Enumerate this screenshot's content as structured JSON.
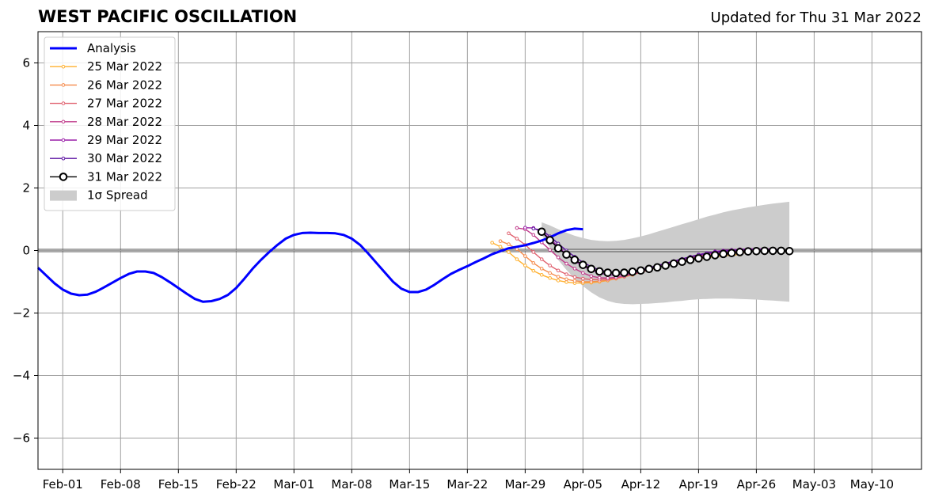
{
  "chart_data": {
    "type": "line",
    "title": "WEST PACIFIC OSCILLATION",
    "subtitle": "Updated for Thu 31 Mar 2022",
    "xlabel": "",
    "ylabel": "",
    "x_range": [
      "2022-01-29",
      "2022-05-16"
    ],
    "ylim": [
      -7,
      7
    ],
    "y_ticks": [
      -6,
      -4,
      -2,
      0,
      2,
      4,
      6
    ],
    "y_tick_labels": [
      "−6",
      "−4",
      "−2",
      "0",
      "2",
      "4",
      "6"
    ],
    "x_ticks": [
      "2022-02-01",
      "2022-02-08",
      "2022-02-15",
      "2022-02-22",
      "2022-03-01",
      "2022-03-08",
      "2022-03-15",
      "2022-03-22",
      "2022-03-29",
      "2022-04-05",
      "2022-04-12",
      "2022-04-19",
      "2022-04-26",
      "2022-05-03",
      "2022-05-10"
    ],
    "x_tick_labels": [
      "Feb-01",
      "Feb-08",
      "Feb-15",
      "Feb-22",
      "Mar-01",
      "Mar-08",
      "Mar-15",
      "Mar-22",
      "Mar-29",
      "Apr-05",
      "Apr-12",
      "Apr-19",
      "Apr-26",
      "May-03",
      "May-10"
    ],
    "grid": true,
    "legend_position": "top-left",
    "analysis": {
      "name": "Analysis",
      "color": "#0000ff",
      "start": "2022-01-29",
      "values": [
        -0.55,
        -0.8,
        -1.05,
        -1.25,
        -1.38,
        -1.43,
        -1.41,
        -1.32,
        -1.18,
        -1.03,
        -0.88,
        -0.75,
        -0.67,
        -0.67,
        -0.72,
        -0.85,
        -1.02,
        -1.2,
        -1.38,
        -1.55,
        -1.64,
        -1.62,
        -1.55,
        -1.42,
        -1.2,
        -0.9,
        -0.58,
        -0.3,
        -0.05,
        0.18,
        0.38,
        0.5,
        0.56,
        0.57,
        0.56,
        0.56,
        0.55,
        0.5,
        0.38,
        0.18,
        -0.1,
        -0.4,
        -0.7,
        -1.0,
        -1.22,
        -1.33,
        -1.33,
        -1.25,
        -1.1,
        -0.92,
        -0.75,
        -0.62,
        -0.5,
        -0.37,
        -0.25,
        -0.12,
        -0.02,
        0.07,
        0.12,
        0.17,
        0.24,
        0.32,
        0.42,
        0.55,
        0.65,
        0.7,
        0.68
      ]
    },
    "forecasts": [
      {
        "name": "25 Mar 2022",
        "color": "#ffb02e",
        "start": "2022-03-25",
        "values": [
          0.25,
          0.12,
          -0.05,
          -0.28,
          -0.48,
          -0.65,
          -0.78,
          -0.88,
          -0.96,
          -1.01,
          -1.04,
          -1.04,
          -1.03,
          -1.0,
          -0.96,
          -0.9,
          -0.84,
          -0.78,
          -0.7,
          -0.62,
          -0.55,
          -0.48,
          -0.42,
          -0.36,
          -0.31,
          -0.27,
          -0.23,
          -0.2,
          -0.17,
          -0.15,
          -0.13
        ]
      },
      {
        "name": "26 Mar 2022",
        "color": "#f58b4c",
        "start": "2022-03-26",
        "values": [
          0.3,
          0.2,
          0.05,
          -0.18,
          -0.4,
          -0.58,
          -0.72,
          -0.84,
          -0.92,
          -0.97,
          -1.0,
          -1.0,
          -0.98,
          -0.95,
          -0.9,
          -0.84,
          -0.77,
          -0.7,
          -0.62,
          -0.55,
          -0.48,
          -0.41,
          -0.35,
          -0.29,
          -0.24,
          -0.2,
          -0.16,
          -0.13,
          -0.1,
          -0.08,
          -0.07
        ]
      },
      {
        "name": "27 Mar 2022",
        "color": "#e0606e",
        "start": "2022-03-27",
        "values": [
          0.55,
          0.38,
          0.18,
          -0.05,
          -0.28,
          -0.48,
          -0.64,
          -0.76,
          -0.85,
          -0.9,
          -0.93,
          -0.93,
          -0.91,
          -0.87,
          -0.81,
          -0.75,
          -0.68,
          -0.6,
          -0.52,
          -0.45,
          -0.38,
          -0.31,
          -0.25,
          -0.2,
          -0.15,
          -0.11,
          -0.08,
          -0.05,
          -0.03,
          -0.02,
          -0.01
        ]
      },
      {
        "name": "28 Mar 2022",
        "color": "#c13d8c",
        "start": "2022-03-28",
        "values": [
          0.72,
          0.68,
          0.5,
          0.26,
          0.02,
          -0.22,
          -0.42,
          -0.58,
          -0.72,
          -0.82,
          -0.87,
          -0.88,
          -0.86,
          -0.82,
          -0.76,
          -0.69,
          -0.61,
          -0.53,
          -0.45,
          -0.38,
          -0.31,
          -0.24,
          -0.18,
          -0.13,
          -0.08,
          -0.05,
          -0.02,
          0.0,
          0.02,
          0.03,
          0.03
        ]
      },
      {
        "name": "29 Mar 2022",
        "color": "#9a1fa8",
        "start": "2022-03-29",
        "values": [
          0.73,
          0.72,
          0.6,
          0.38,
          0.12,
          -0.12,
          -0.34,
          -0.5,
          -0.63,
          -0.72,
          -0.78,
          -0.79,
          -0.77,
          -0.72,
          -0.66,
          -0.58,
          -0.5,
          -0.42,
          -0.34,
          -0.27,
          -0.2,
          -0.13,
          -0.08,
          -0.03,
          0.0,
          0.02,
          0.04,
          0.05,
          0.05,
          0.05,
          0.05
        ]
      },
      {
        "name": "30 Mar 2022",
        "color": "#5a0fa0",
        "start": "2022-03-30",
        "values": [
          0.7,
          0.65,
          0.45,
          0.22,
          0.0,
          -0.2,
          -0.38,
          -0.52,
          -0.62,
          -0.68,
          -0.7,
          -0.69,
          -0.66,
          -0.61,
          -0.55,
          -0.48,
          -0.41,
          -0.34,
          -0.27,
          -0.2,
          -0.14,
          -0.09,
          -0.05,
          -0.02,
          0.0,
          0.02,
          0.03,
          0.03,
          0.03,
          0.03,
          0.02
        ]
      }
    ],
    "current": {
      "name": "31 Mar 2022",
      "color": "#000000",
      "start": "2022-03-31",
      "values": [
        0.6,
        0.33,
        0.07,
        -0.13,
        -0.3,
        -0.46,
        -0.59,
        -0.67,
        -0.71,
        -0.72,
        -0.71,
        -0.68,
        -0.64,
        -0.59,
        -0.54,
        -0.48,
        -0.42,
        -0.36,
        -0.3,
        -0.25,
        -0.2,
        -0.15,
        -0.11,
        -0.08,
        -0.05,
        -0.03,
        -0.02,
        -0.01,
        -0.01,
        -0.01,
        -0.02
      ]
    },
    "spread": {
      "name": "1σ Spread",
      "color": "#cccccc",
      "start": "2022-03-31",
      "upper": [
        0.9,
        0.8,
        0.68,
        0.57,
        0.47,
        0.4,
        0.34,
        0.31,
        0.3,
        0.31,
        0.34,
        0.39,
        0.45,
        0.52,
        0.6,
        0.68,
        0.76,
        0.84,
        0.92,
        1.0,
        1.08,
        1.15,
        1.22,
        1.28,
        1.33,
        1.38,
        1.42,
        1.46,
        1.5,
        1.53,
        1.56
      ],
      "lower": [
        0.5,
        0.1,
        -0.3,
        -0.62,
        -0.9,
        -1.14,
        -1.34,
        -1.5,
        -1.61,
        -1.68,
        -1.71,
        -1.72,
        -1.71,
        -1.7,
        -1.68,
        -1.66,
        -1.63,
        -1.61,
        -1.58,
        -1.56,
        -1.55,
        -1.54,
        -1.54,
        -1.54,
        -1.55,
        -1.56,
        -1.57,
        -1.59,
        -1.6,
        -1.62,
        -1.64
      ]
    }
  }
}
